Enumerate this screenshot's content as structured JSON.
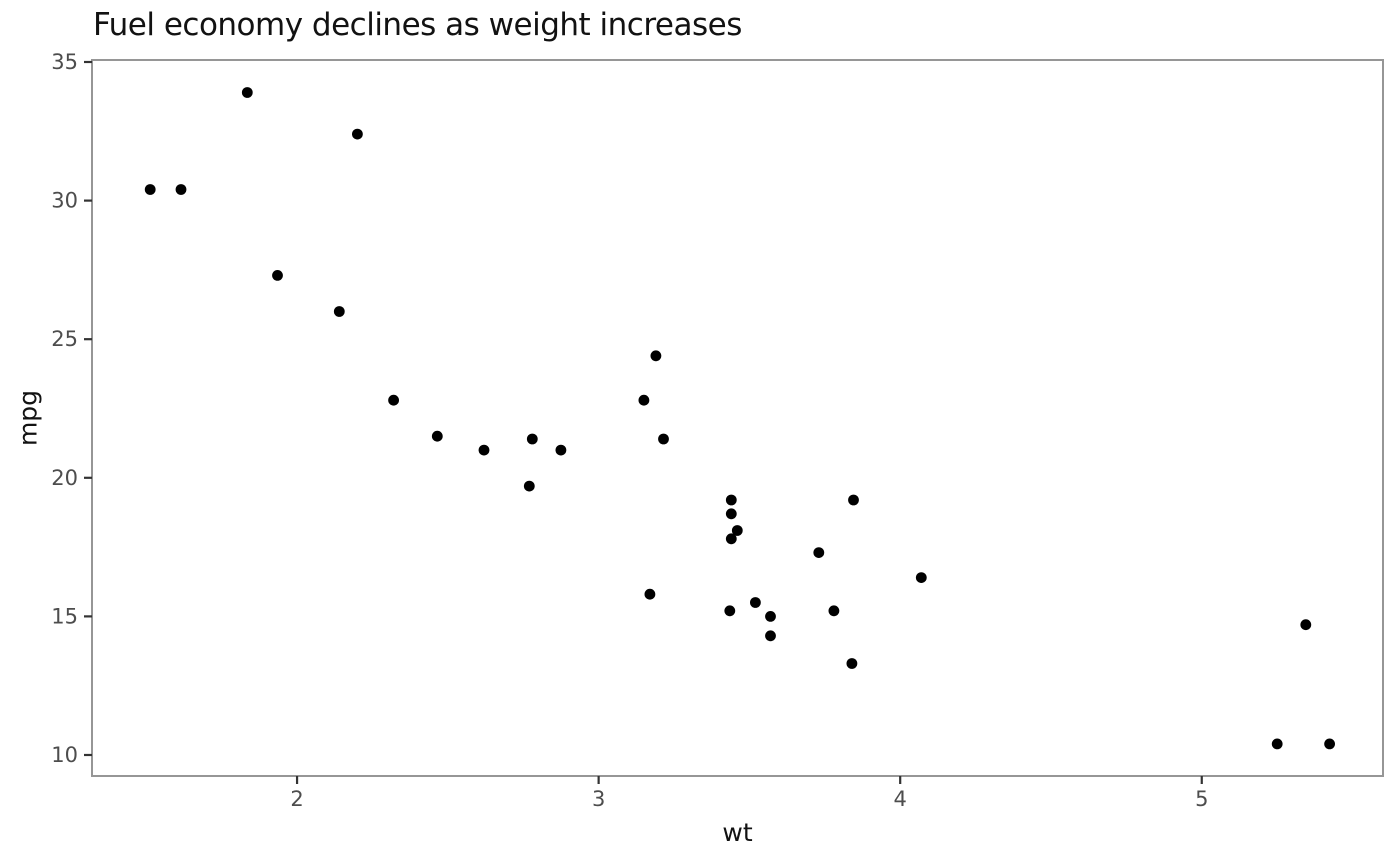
{
  "chart_data": {
    "type": "scatter",
    "title": "Fuel economy declines as weight increases",
    "xlabel": "wt",
    "ylabel": "mpg",
    "x_ticks": [
      2,
      3,
      4,
      5
    ],
    "y_ticks": [
      10,
      15,
      20,
      25,
      30,
      35
    ],
    "xlim": [
      1.32,
      5.601
    ],
    "ylim": [
      9.242,
      35.072
    ],
    "grid": false,
    "legend": false,
    "points": [
      [
        2.62,
        21.0
      ],
      [
        2.875,
        21.0
      ],
      [
        2.32,
        22.8
      ],
      [
        3.215,
        21.4
      ],
      [
        3.44,
        18.7
      ],
      [
        3.46,
        18.1
      ],
      [
        3.57,
        14.3
      ],
      [
        3.19,
        24.4
      ],
      [
        3.15,
        22.8
      ],
      [
        3.44,
        19.2
      ],
      [
        3.44,
        17.8
      ],
      [
        4.07,
        16.4
      ],
      [
        3.73,
        17.3
      ],
      [
        3.78,
        15.2
      ],
      [
        5.25,
        10.4
      ],
      [
        5.424,
        10.4
      ],
      [
        5.345,
        14.7
      ],
      [
        2.2,
        32.4
      ],
      [
        1.615,
        30.4
      ],
      [
        1.835,
        33.9
      ],
      [
        2.465,
        21.5
      ],
      [
        3.52,
        15.5
      ],
      [
        3.435,
        15.2
      ],
      [
        3.84,
        13.3
      ],
      [
        3.845,
        19.2
      ],
      [
        1.935,
        27.3
      ],
      [
        2.14,
        26.0
      ],
      [
        1.513,
        30.4
      ],
      [
        3.17,
        15.8
      ],
      [
        2.77,
        19.7
      ],
      [
        3.57,
        15.0
      ],
      [
        2.78,
        21.4
      ]
    ]
  },
  "colors": {
    "background": "#ffffff",
    "point": "#000000",
    "panel_border": "#969696",
    "tick_mark": "#333333",
    "tick_label": "#4d4d4d",
    "axis_title": "#121212",
    "title": "#121212"
  }
}
